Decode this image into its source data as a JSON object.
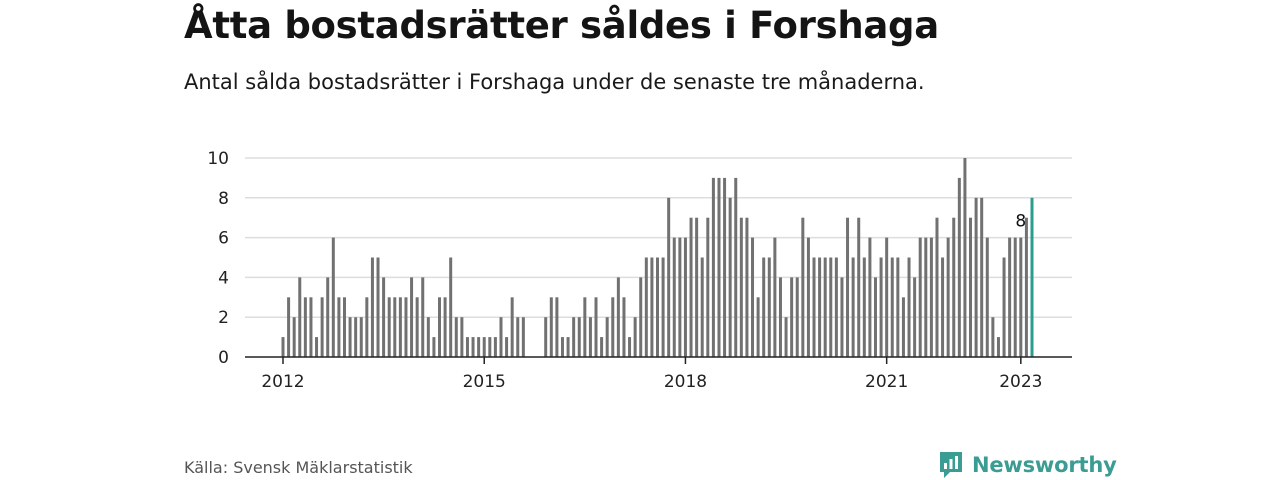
{
  "title": "Åtta bostadsrätter såldes i Forshaga",
  "subtitle": "Antal sålda bostadsrätter i Forshaga under de senaste tre månaderna.",
  "source": "Källa: Svensk Mäklarstatistik",
  "brand": {
    "name": "Newsworthy"
  },
  "colors": {
    "bar": "#717171",
    "highlight": "#2a9d8f",
    "grid": "#dddddd",
    "axis": "#222222",
    "brand": "#3a9c93"
  },
  "chart_data": {
    "type": "bar",
    "title": "Åtta bostadsrätter såldes i Forshaga",
    "subtitle": "Antal sålda bostadsrätter i Forshaga under de senaste tre månaderna.",
    "xlabel": "",
    "ylabel": "",
    "ylim": [
      0,
      10
    ],
    "yticks": [
      0,
      2,
      4,
      6,
      8,
      10
    ],
    "grid": true,
    "legend": "none",
    "x_start": "2012-01",
    "x_end": "2023-01",
    "xticks": [
      {
        "label": "2012",
        "month": "2012-01"
      },
      {
        "label": "2015",
        "month": "2015-01"
      },
      {
        "label": "2018",
        "month": "2018-01"
      },
      {
        "label": "2021",
        "month": "2021-01"
      },
      {
        "label": "2023",
        "month": "2023-01"
      }
    ],
    "values": [
      1,
      3,
      2,
      4,
      3,
      3,
      1,
      3,
      4,
      6,
      3,
      3,
      2,
      2,
      2,
      3,
      5,
      5,
      4,
      3,
      3,
      3,
      3,
      4,
      3,
      4,
      2,
      1,
      3,
      3,
      5,
      2,
      2,
      1,
      1,
      1,
      1,
      1,
      1,
      2,
      1,
      3,
      2,
      2,
      0,
      0,
      0,
      2,
      3,
      3,
      1,
      1,
      2,
      2,
      3,
      2,
      3,
      1,
      2,
      3,
      4,
      3,
      1,
      2,
      4,
      5,
      5,
      5,
      5,
      8,
      6,
      6,
      6,
      7,
      7,
      5,
      7,
      9,
      9,
      9,
      8,
      9,
      7,
      7,
      6,
      3,
      5,
      5,
      6,
      4,
      2,
      4,
      4,
      7,
      6,
      5,
      5,
      5,
      5,
      5,
      4,
      7,
      5,
      7,
      5,
      6,
      4,
      5,
      6,
      5,
      5,
      3,
      5,
      4,
      6,
      6,
      6,
      7,
      5,
      6,
      7,
      9,
      10,
      7,
      8,
      8,
      6,
      2,
      1,
      5,
      6,
      6,
      6,
      7,
      8
    ],
    "annotations": [
      {
        "month": "2023-01",
        "text": "8"
      }
    ]
  }
}
